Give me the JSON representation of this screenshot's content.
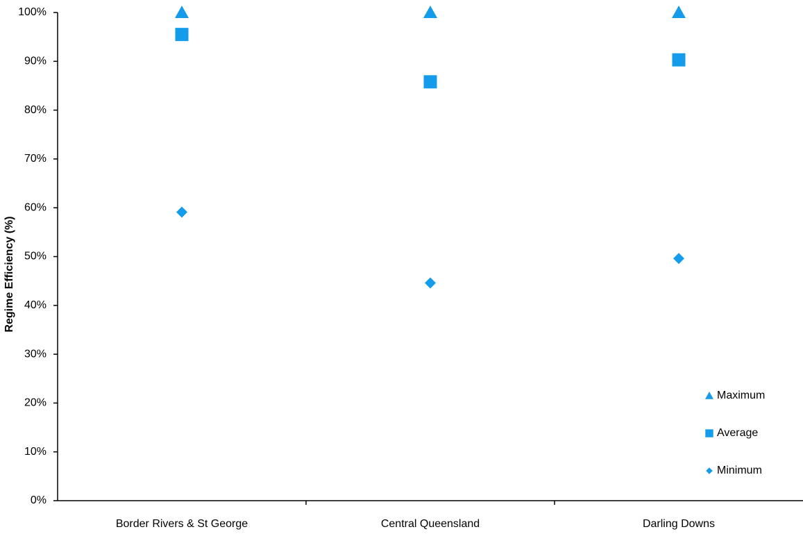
{
  "chart_data": {
    "type": "scatter",
    "y_label": "Regime Efficiency (%)",
    "categories": [
      "Border Rivers & St George",
      "Central Queensland",
      "Darling Downs"
    ],
    "series": [
      {
        "name": "Maximum",
        "marker": "triangle",
        "color": "#149ceb",
        "values": [
          100,
          100,
          100
        ]
      },
      {
        "name": "Average",
        "marker": "square",
        "color": "#149ceb",
        "values": [
          95.5,
          85.8,
          90.3
        ]
      },
      {
        "name": "Minimum",
        "marker": "diamond",
        "color": "#149ceb",
        "values": [
          59.1,
          44.6,
          49.6
        ]
      }
    ],
    "ylim": [
      0,
      100
    ],
    "yticks": [
      {
        "value": 0,
        "label": "0%"
      },
      {
        "value": 10,
        "label": "10%"
      },
      {
        "value": 20,
        "label": "20%"
      },
      {
        "value": 30,
        "label": "30%"
      },
      {
        "value": 40,
        "label": "40%"
      },
      {
        "value": 50,
        "label": "50%"
      },
      {
        "value": 60,
        "label": "60%"
      },
      {
        "value": 70,
        "label": "70%"
      },
      {
        "value": 80,
        "label": "80%"
      },
      {
        "value": 90,
        "label": "90%"
      },
      {
        "value": 100,
        "label": "100%"
      }
    ],
    "grid": false,
    "legend": "lower-right"
  }
}
